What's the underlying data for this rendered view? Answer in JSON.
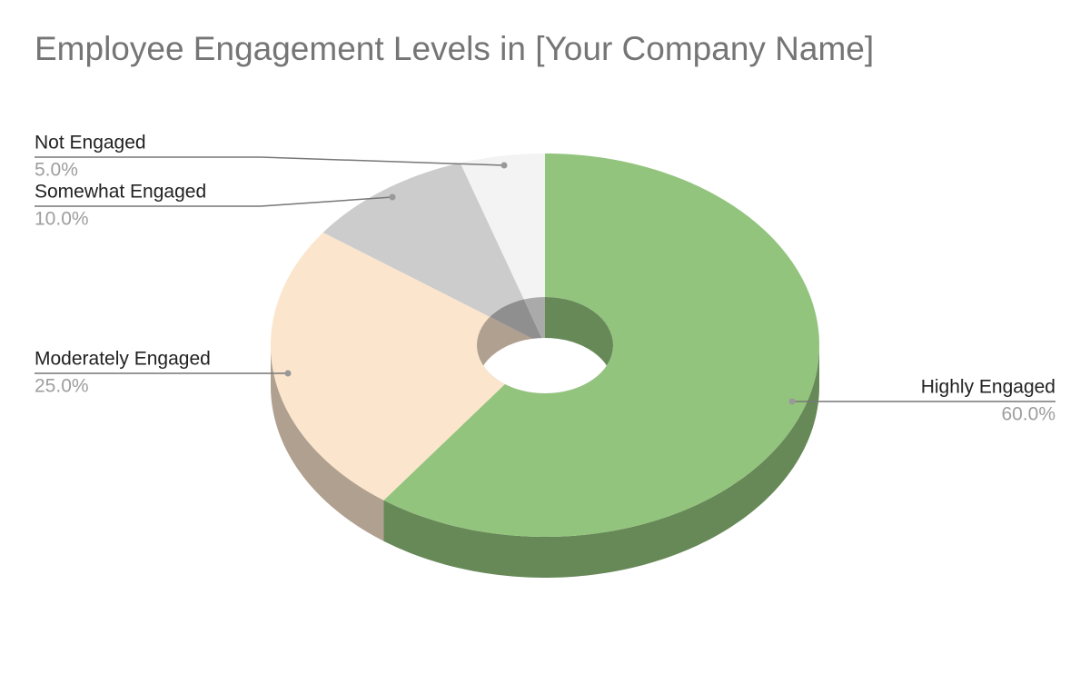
{
  "chart_data": {
    "type": "pie",
    "title": "Employee Engagement Levels in [Your Company Name]",
    "categories": [
      "Highly Engaged",
      "Moderately Engaged",
      "Somewhat Engaged",
      "Not Engaged"
    ],
    "values": [
      60,
      25,
      10,
      5
    ],
    "value_labels": [
      "60.0%",
      "25.0%",
      "10.0%",
      "5.0%"
    ],
    "colors": [
      "#93c47d",
      "#fce5cd",
      "#cccccc",
      "#f3f3f3"
    ]
  }
}
